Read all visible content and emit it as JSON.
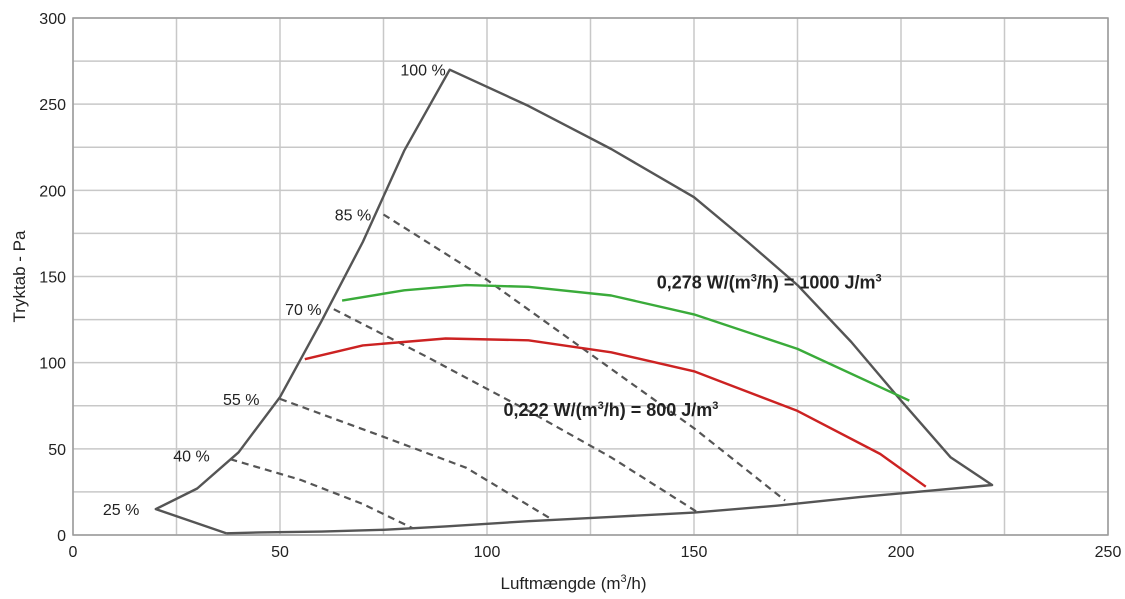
{
  "chart_data": {
    "type": "line",
    "xlabel": "Luftmængde (m³/h)",
    "xlabel_main": "Luftmængde (m",
    "xlabel_sup": "3",
    "xlabel_end": "/h)",
    "ylabel": "Tryktab - Pa",
    "xlim": [
      0,
      250
    ],
    "ylim": [
      0,
      300
    ],
    "xticks": [
      0,
      50,
      100,
      150,
      200,
      250
    ],
    "yticks": [
      0,
      50,
      100,
      150,
      200,
      250,
      300
    ],
    "xtick_labels": [
      "0",
      "50",
      "100",
      "150",
      "200",
      "250"
    ],
    "ytick_labels": [
      "0",
      "50",
      "100",
      "150",
      "200",
      "250",
      "300"
    ],
    "grid": true,
    "grid_step_x": 25,
    "grid_step_y": 25,
    "colors": {
      "envelope": "#555555",
      "dashed": "#555555",
      "green": "#3aab3a",
      "red": "#cc2222",
      "grid": "#c8c8c8"
    },
    "envelope": [
      [
        37,
        1
      ],
      [
        45,
        1.5
      ],
      [
        60,
        2
      ],
      [
        75,
        3
      ],
      [
        90,
        5
      ],
      [
        110,
        8
      ],
      [
        130,
        10.5
      ],
      [
        150,
        13
      ],
      [
        170,
        17
      ],
      [
        190,
        22
      ],
      [
        222,
        29
      ],
      [
        212,
        45
      ],
      [
        200,
        78
      ],
      [
        188,
        112
      ],
      [
        175,
        145
      ],
      [
        163,
        170
      ],
      [
        150,
        196
      ],
      [
        130,
        224
      ],
      [
        110,
        249
      ],
      [
        91,
        270
      ],
      [
        80,
        223
      ],
      [
        70,
        170
      ],
      [
        60,
        124
      ],
      [
        50,
        80
      ],
      [
        40,
        48
      ],
      [
        30,
        27
      ],
      [
        20,
        15
      ],
      [
        37,
        1
      ]
    ],
    "speed_lines": [
      {
        "label": "85 %",
        "points": [
          [
            75,
            186
          ],
          [
            100,
            148
          ],
          [
            125,
            105
          ],
          [
            150,
            62
          ],
          [
            172,
            20
          ]
        ]
      },
      {
        "label": "70 %",
        "points": [
          [
            63,
            131
          ],
          [
            85,
            104
          ],
          [
            110,
            72
          ],
          [
            130,
            45
          ],
          [
            151,
            13
          ]
        ]
      },
      {
        "label": "55 %",
        "points": [
          [
            50,
            79
          ],
          [
            75,
            57
          ],
          [
            95,
            39
          ],
          [
            115,
            10
          ]
        ]
      },
      {
        "label": "40 %",
        "points": [
          [
            38,
            44
          ],
          [
            55,
            32
          ],
          [
            70,
            18
          ],
          [
            82,
            4
          ]
        ]
      }
    ],
    "series": [
      {
        "name": "0,278 W/(m³/h) = 1000 J/m³",
        "color": "#3aab3a",
        "x": [
          65,
          80,
          95,
          110,
          130,
          150,
          175,
          202
        ],
        "y": [
          136,
          142,
          145,
          144,
          139,
          128,
          108,
          78
        ]
      },
      {
        "name": "0,222 W/(m³/h) = 800 J/m³",
        "color": "#cc2222",
        "x": [
          56,
          70,
          90,
          110,
          130,
          150,
          175,
          195,
          206
        ],
        "y": [
          102,
          110,
          114,
          113,
          106,
          95,
          72,
          47,
          28
        ]
      }
    ],
    "labels": [
      {
        "text": "100 %",
        "x": 91,
        "y": 270,
        "anchor": "end"
      },
      {
        "text": "85 %",
        "x": 73,
        "y": 186,
        "anchor": "end"
      },
      {
        "text": "70 %",
        "x": 61,
        "y": 131,
        "anchor": "end"
      },
      {
        "text": "55 %",
        "x": 46,
        "y": 79,
        "anchor": "end"
      },
      {
        "text": "40 %",
        "x": 34,
        "y": 46,
        "anchor": "end"
      },
      {
        "text": "25 %",
        "x": 17,
        "y": 15,
        "anchor": "end"
      }
    ],
    "annotations": [
      {
        "parts": [
          "0,278 W/(m",
          "3",
          "/h) = 1000 J/m",
          "3"
        ],
        "x": 141,
        "y": 143
      },
      {
        "parts": [
          "0,222 W/(m",
          "3",
          "/h) = 800 J/m",
          "3"
        ],
        "x": 104,
        "y": 69
      }
    ]
  }
}
